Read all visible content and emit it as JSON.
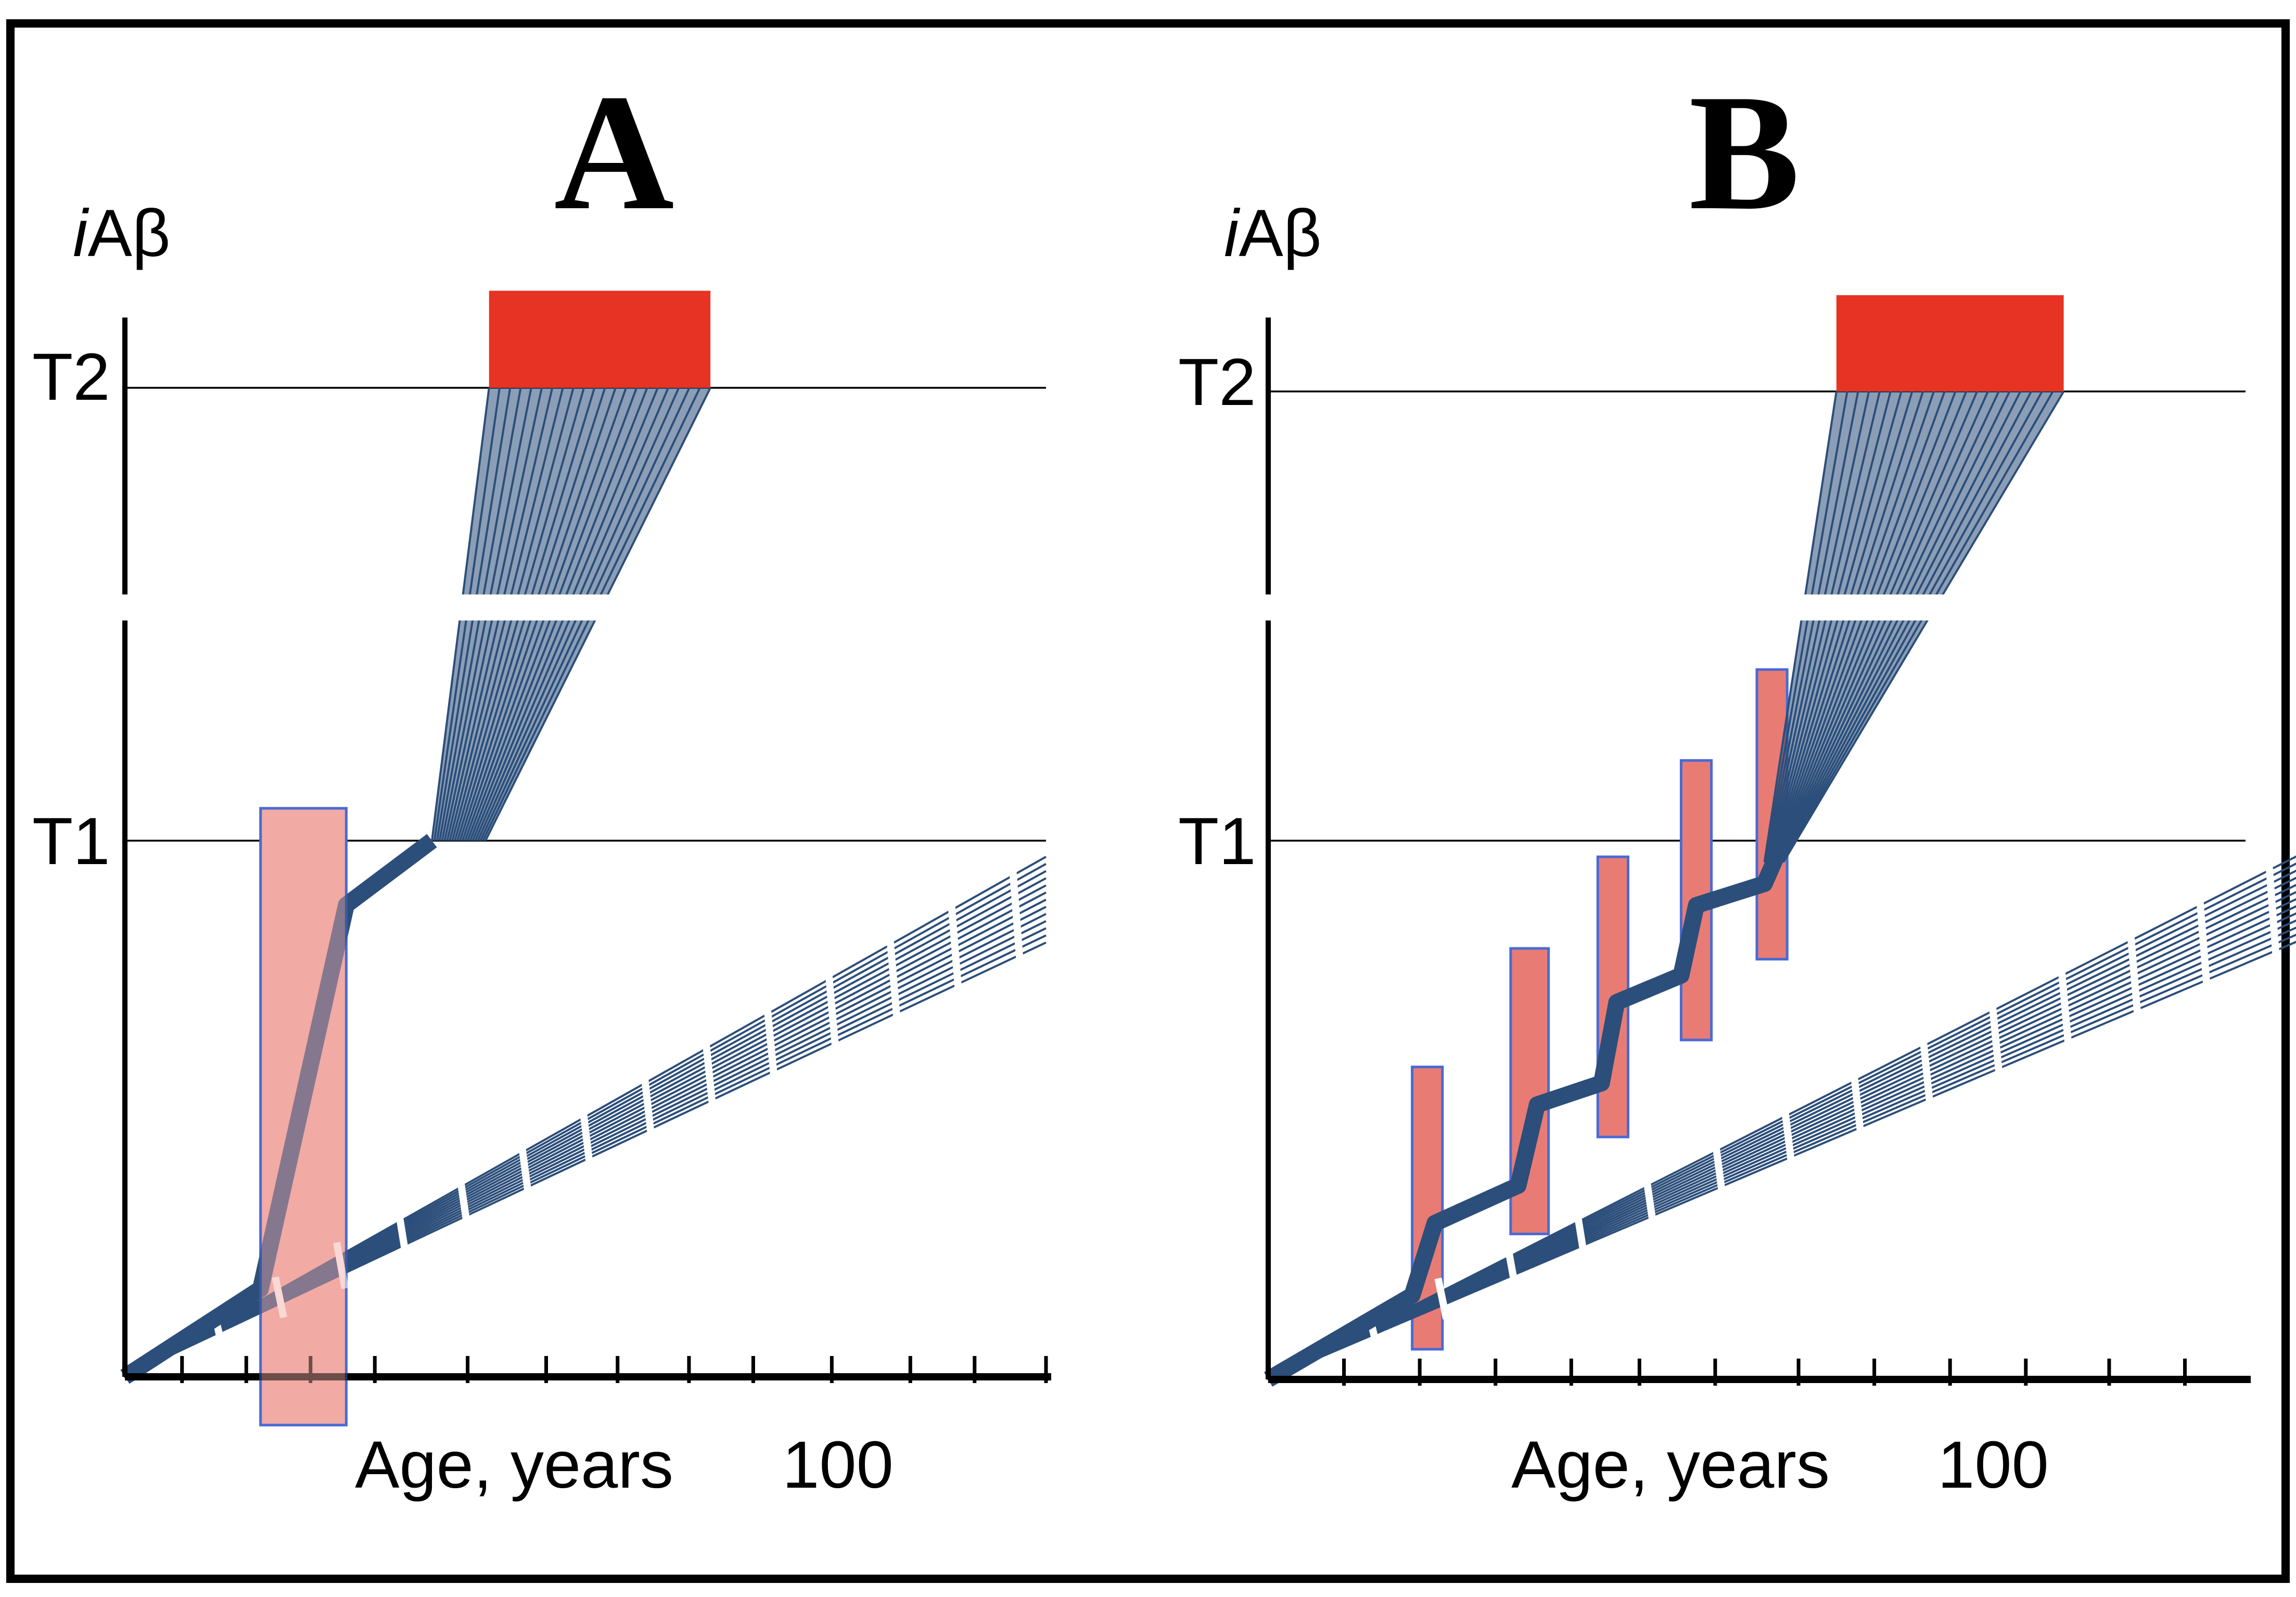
{
  "colors": {
    "trajectory": "#2c4e7a",
    "target_box": "#e63323",
    "episode_wide": "#f2aaa4",
    "episode_narrow": "#e87c74",
    "episode_border": "#4a6ad4"
  },
  "chart_data": [
    {
      "panel": "A",
      "type": "line",
      "title": "A",
      "ylabel": "iAβ",
      "ylabel_italic": "i",
      "ylabel_rest": "Aβ",
      "xlabel": "Age, years",
      "x_tick_label": "100",
      "xlim": [
        0,
        129
      ],
      "ylim": [
        0,
        115
      ],
      "thresholds": [
        {
          "name": "T1",
          "value": 50
        },
        {
          "name": "T2",
          "value": 92
        }
      ],
      "y_axis_break": true,
      "ticks": [
        8,
        17,
        26,
        35,
        48,
        59,
        69,
        79,
        88,
        99,
        110,
        119,
        129
      ],
      "episodes": [
        {
          "start": 19,
          "end": 31,
          "color_key": "episode_wide",
          "y_range": [
            -4.5,
            53
          ]
        }
      ],
      "steady_line": {
        "x": [
          0,
          129
        ],
        "y_start": 0,
        "y_end_min": 40.5,
        "y_end_max": 48.5,
        "strands": 13
      },
      "trajectory_points": [
        {
          "x": 0,
          "y": 0
        },
        {
          "x": 19,
          "y": 8.2
        },
        {
          "x": 31,
          "y": 44
        },
        {
          "x": 43,
          "y": 50
        }
      ],
      "fan": {
        "start_x": 43,
        "start_x2": 50.5,
        "start_y": 50,
        "end_x_min": 51,
        "end_x_max": 82,
        "end_y": 92,
        "strands": 22
      },
      "onset_box": {
        "x_start": 51,
        "x_end": 82,
        "y_bottom": 92,
        "y_top": 101
      }
    },
    {
      "panel": "B",
      "type": "line",
      "title": "B",
      "ylabel": "iAβ",
      "ylabel_italic": "i",
      "ylabel_rest": "Aβ",
      "xlabel": "Age, years",
      "x_tick_label": "100",
      "xlim": [
        0,
        129
      ],
      "ylim": [
        0,
        115
      ],
      "thresholds": [
        {
          "name": "T1",
          "value": 50
        },
        {
          "name": "T2",
          "value": 92
        }
      ],
      "y_axis_break": true,
      "ticks": [
        10,
        20,
        30,
        40,
        49,
        59,
        70,
        80,
        90,
        100,
        111,
        121,
        131
      ],
      "episodes": [
        {
          "start": 19,
          "end": 23,
          "color_key": "episode_narrow",
          "y_range": [
            2.8,
            29
          ]
        },
        {
          "start": 32,
          "end": 37,
          "color_key": "episode_narrow",
          "y_range": [
            13.5,
            40
          ]
        },
        {
          "start": 43.5,
          "end": 47.5,
          "color_key": "episode_narrow",
          "y_range": [
            22.5,
            48.5
          ]
        },
        {
          "start": 54.5,
          "end": 58.5,
          "color_key": "episode_narrow",
          "y_range": [
            31.5,
            57.5
          ]
        },
        {
          "start": 64.5,
          "end": 68.5,
          "color_key": "episode_narrow",
          "y_range": [
            39,
            66
          ]
        }
      ],
      "steady_line": {
        "x": [
          0,
          137
        ],
        "y_start": 0,
        "y_end_min": 41,
        "y_end_max": 49,
        "strands": 13
      },
      "trajectory_points": [
        {
          "x": 0,
          "y": 0
        },
        {
          "x": 19,
          "y": 7.8
        },
        {
          "x": 22,
          "y": 14.5
        },
        {
          "x": 33,
          "y": 18
        },
        {
          "x": 35.5,
          "y": 25.5
        },
        {
          "x": 44,
          "y": 27.5
        },
        {
          "x": 46,
          "y": 35
        },
        {
          "x": 54.5,
          "y": 37.5
        },
        {
          "x": 56.5,
          "y": 44
        },
        {
          "x": 65.5,
          "y": 46
        },
        {
          "x": 68,
          "y": 50
        }
      ],
      "fan": {
        "start_x": 65.5,
        "start_x2": 68,
        "start_y": 48,
        "end_x_min": 75,
        "end_x_max": 105,
        "end_y": 92,
        "strands": 22
      },
      "onset_box": {
        "x_start": 75,
        "x_end": 105,
        "y_bottom": 92,
        "y_top": 101
      }
    }
  ]
}
